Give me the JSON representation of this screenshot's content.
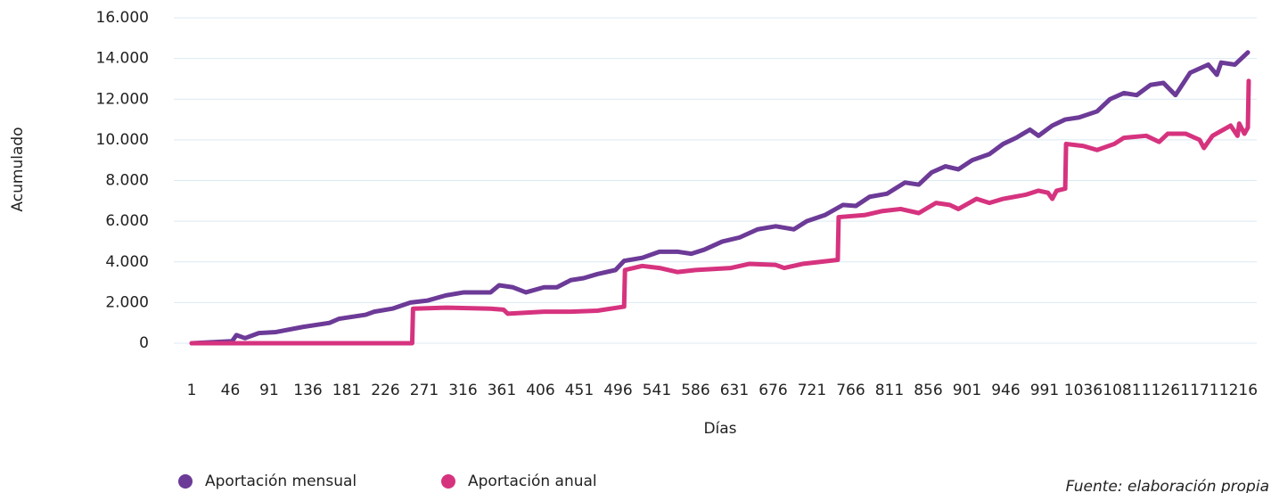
{
  "chart_data": {
    "type": "line",
    "y_label": "Acumulado",
    "x_label": "Días",
    "source": "Fuente: elaboración propia",
    "xlim": [
      1,
      1228
    ],
    "xticks": [
      1,
      46,
      91,
      136,
      181,
      226,
      271,
      316,
      361,
      406,
      451,
      496,
      541,
      586,
      631,
      676,
      721,
      766,
      811,
      856,
      901,
      946,
      991,
      1036,
      1081,
      1126,
      1171,
      1216
    ],
    "ylim": [
      0,
      16000
    ],
    "yticks": [
      0,
      {
        "value": 2000,
        "label": "2.000"
      },
      {
        "value": 4000,
        "label": "4.000"
      },
      {
        "value": 6000,
        "label": "6.000"
      },
      {
        "value": 8000,
        "label": "8.000"
      },
      {
        "value": 10000,
        "label": "10.000"
      },
      {
        "value": 12000,
        "label": "12.000"
      },
      {
        "value": 14000,
        "label": "14.000"
      },
      {
        "value": 16000,
        "label": "16.000"
      }
    ],
    "grid": true,
    "legend": "bottom",
    "series": [
      {
        "name": "Aportación mensual",
        "color": "#6c3a97",
        "x": [
          1,
          48,
          53,
          63,
          79,
          99,
          130,
          161,
          172,
          203,
          213,
          234,
          255,
          275,
          296,
          317,
          348,
          358,
          374,
          389,
          410,
          425,
          441,
          456,
          472,
          493,
          503,
          524,
          544,
          565,
          581,
          596,
          617,
          637,
          658,
          679,
          700,
          715,
          736,
          757,
          772,
          788,
          808,
          829,
          845,
          860,
          876,
          891,
          907,
          927,
          943,
          958,
          974,
          984,
          1000,
          1015,
          1031,
          1052,
          1067,
          1083,
          1098,
          1114,
          1129,
          1143,
          1160,
          1181,
          1191,
          1196,
          1212,
          1227
        ],
        "values": [
          0,
          100,
          400,
          250,
          500,
          550,
          800,
          1000,
          1200,
          1400,
          1550,
          1700,
          2000,
          2100,
          2350,
          2500,
          2500,
          2850,
          2750,
          2500,
          2750,
          2750,
          3100,
          3200,
          3400,
          3600,
          4050,
          4200,
          4500,
          4500,
          4400,
          4600,
          5000,
          5200,
          5600,
          5750,
          5600,
          6000,
          6300,
          6800,
          6750,
          7200,
          7350,
          7900,
          7800,
          8400,
          8700,
          8550,
          9000,
          9300,
          9800,
          10100,
          10500,
          10200,
          10700,
          11000,
          11100,
          11400,
          12000,
          12300,
          12200,
          12700,
          12800,
          12200,
          13300,
          13700,
          13200,
          13800,
          13700,
          14300
        ]
      },
      {
        "name": "Aportación anual",
        "color": "#d6337f",
        "x": [
          1,
          257,
          258,
          296,
          348,
          363,
          368,
          410,
          441,
          472,
          503,
          504,
          524,
          544,
          565,
          586,
          627,
          648,
          679,
          689,
          710,
          751,
          752,
          782,
          803,
          824,
          845,
          865,
          881,
          891,
          912,
          927,
          943,
          969,
          984,
          995,
          1000,
          1005,
          1015,
          1016,
          1036,
          1052,
          1072,
          1083,
          1109,
          1124,
          1134,
          1155,
          1171,
          1176,
          1186,
          1207,
          1215,
          1217,
          1223,
          1227,
          1228
        ],
        "values": [
          0,
          0,
          1700,
          1750,
          1700,
          1650,
          1450,
          1550,
          1550,
          1600,
          1800,
          3600,
          3800,
          3700,
          3500,
          3600,
          3700,
          3900,
          3850,
          3700,
          3900,
          4100,
          6200,
          6300,
          6500,
          6600,
          6400,
          6900,
          6800,
          6600,
          7100,
          6900,
          7100,
          7300,
          7500,
          7400,
          7100,
          7500,
          7600,
          9800,
          9700,
          9500,
          9800,
          10100,
          10200,
          9900,
          10300,
          10300,
          10000,
          9600,
          10200,
          10700,
          10200,
          10800,
          10300,
          10600,
          12900
        ]
      }
    ]
  }
}
